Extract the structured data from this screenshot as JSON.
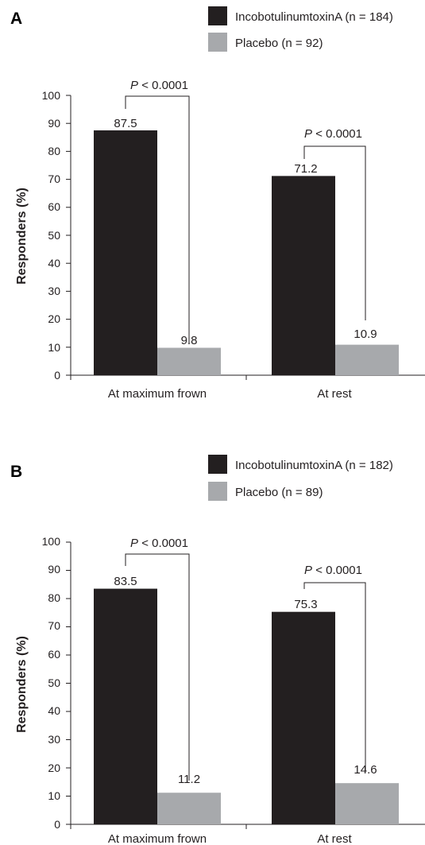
{
  "chart_data": [
    {
      "type": "bar",
      "panel": "A",
      "categories": [
        "At maximum frown",
        "At rest"
      ],
      "series": [
        {
          "name": "IncobotulinumtoxinA (n = 184)",
          "values": [
            87.5,
            71.2
          ],
          "color": "#231f20"
        },
        {
          "name": "Placebo (n = 92)",
          "values": [
            9.8,
            10.9
          ],
          "color": "#a7a9ac"
        }
      ],
      "data_labels": [
        [
          "87.5",
          "71.2"
        ],
        [
          "9.8",
          "10.9"
        ]
      ],
      "p_values": [
        "< 0.0001",
        "< 0.0001"
      ],
      "p_symbol": "P",
      "ylabel": "Responders (%)",
      "ylim": [
        0,
        100
      ],
      "yticks": [
        "0",
        "10",
        "20",
        "30",
        "40",
        "50",
        "60",
        "70",
        "80",
        "90",
        "100"
      ],
      "legend": "top-right",
      "grid": false
    },
    {
      "type": "bar",
      "panel": "B",
      "categories": [
        "At maximum frown",
        "At rest"
      ],
      "series": [
        {
          "name": "IncobotulinumtoxinA (n = 182)",
          "values": [
            83.5,
            75.3
          ],
          "color": "#231f20"
        },
        {
          "name": "Placebo (n = 89)",
          "values": [
            11.2,
            14.6
          ],
          "color": "#a7a9ac"
        }
      ],
      "data_labels": [
        [
          "83.5",
          "75.3"
        ],
        [
          "11.2",
          "14.6"
        ]
      ],
      "p_values": [
        "< 0.0001",
        "< 0.0001"
      ],
      "p_symbol": "P",
      "ylabel": "Responders (%)",
      "ylim": [
        0,
        100
      ],
      "yticks": [
        "0",
        "10",
        "20",
        "30",
        "40",
        "50",
        "60",
        "70",
        "80",
        "90",
        "100"
      ],
      "legend": "top-right",
      "grid": false
    }
  ]
}
